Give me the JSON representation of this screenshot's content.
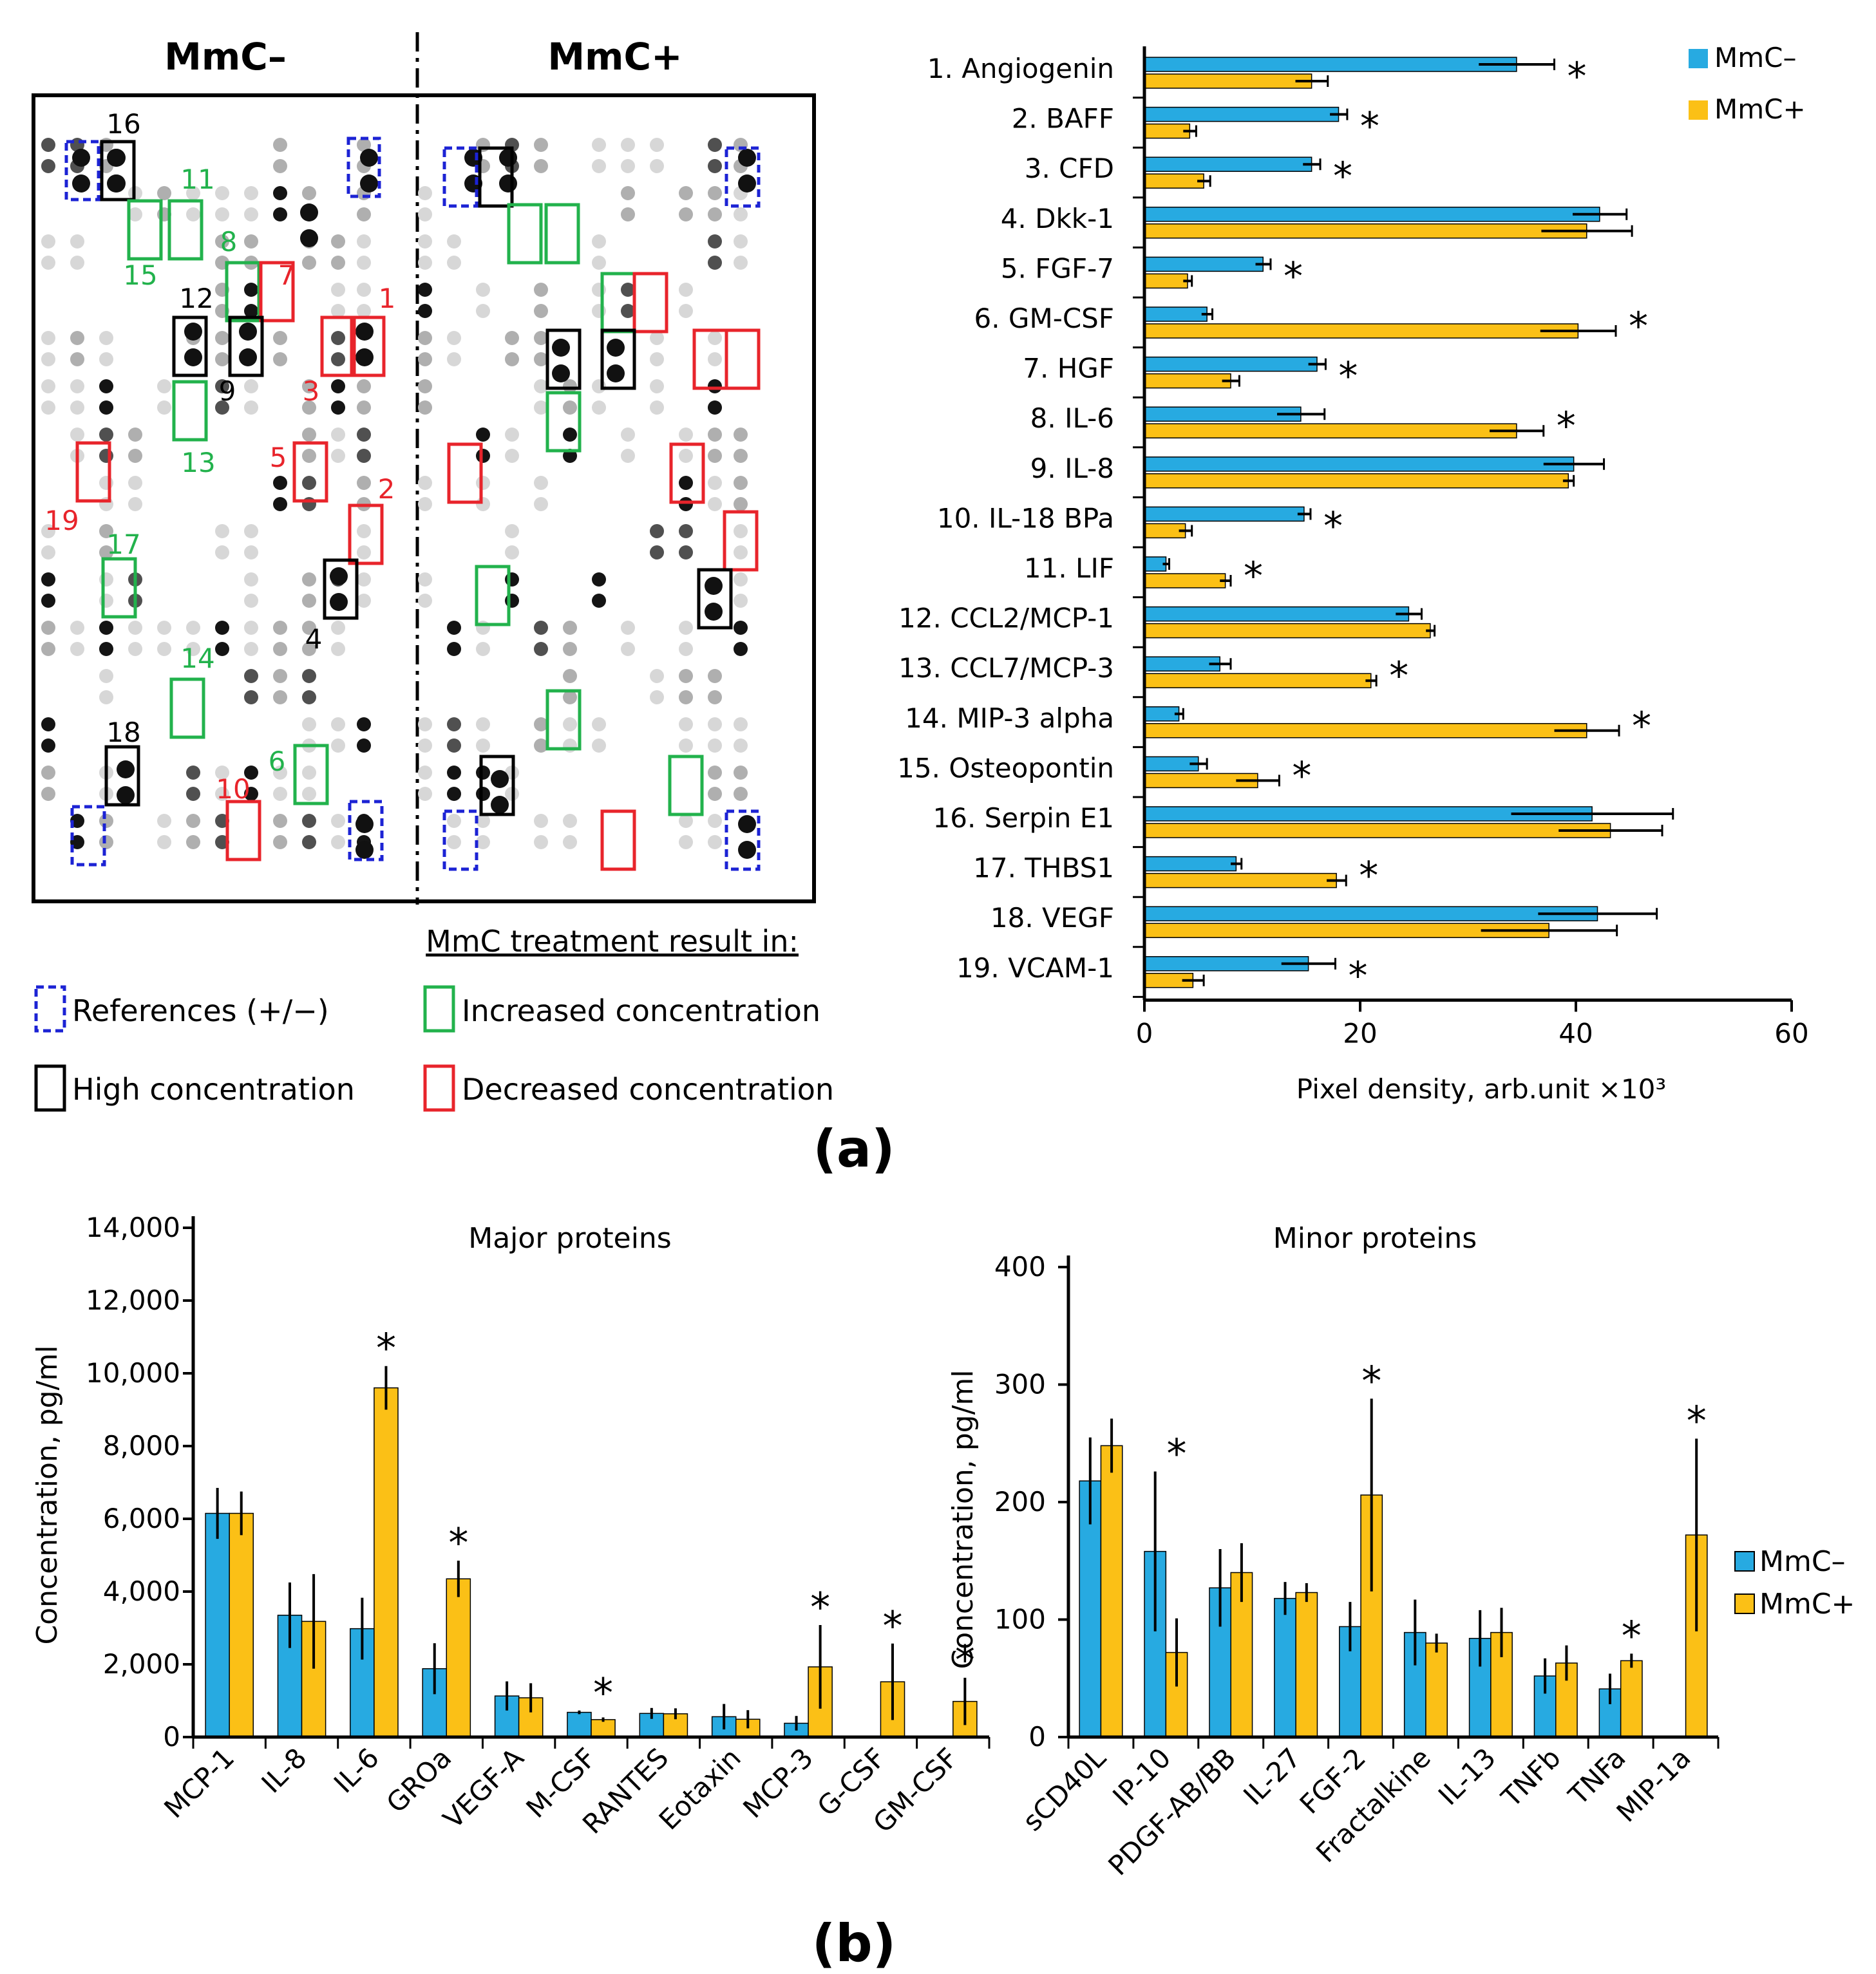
{
  "colors": {
    "mmc_minus": "#27aae1",
    "mmc_plus": "#fbc016",
    "increased": "#22b24c",
    "decreased": "#e8242b",
    "high": "#000000",
    "reference": "#1c23d4"
  },
  "panel_a": {
    "label": "(a)",
    "array": {
      "title_minus": "MmC–",
      "title_plus": "MmC+",
      "callouts": [
        {
          "text": "16",
          "kind": "high"
        },
        {
          "text": "11",
          "kind": "increased"
        },
        {
          "text": "15",
          "kind": "increased"
        },
        {
          "text": "8",
          "kind": "increased"
        },
        {
          "text": "7",
          "kind": "decreased"
        },
        {
          "text": "12",
          "kind": "high"
        },
        {
          "text": "1",
          "kind": "decreased"
        },
        {
          "text": "9",
          "kind": "high"
        },
        {
          "text": "3",
          "kind": "decreased"
        },
        {
          "text": "13",
          "kind": "increased"
        },
        {
          "text": "5",
          "kind": "decreased"
        },
        {
          "text": "2",
          "kind": "decreased"
        },
        {
          "text": "19",
          "kind": "decreased"
        },
        {
          "text": "17",
          "kind": "increased"
        },
        {
          "text": "4",
          "kind": "high"
        },
        {
          "text": "14",
          "kind": "increased"
        },
        {
          "text": "18",
          "kind": "high"
        },
        {
          "text": "6",
          "kind": "increased"
        },
        {
          "text": "10",
          "kind": "decreased"
        }
      ]
    },
    "legend": {
      "heading": "MmC treatment result in:",
      "references": "References (+/−)",
      "high": "High concentration",
      "increased": "Increased concentration",
      "decreased": "Decreased concentration"
    }
  },
  "panel_b": {
    "label": "(b)"
  },
  "chart_data": [
    {
      "type": "bar",
      "orientation": "horizontal",
      "categories": [
        "1. Angiogenin",
        "2. BAFF",
        "3. CFD",
        "4. Dkk-1",
        "5. FGF-7",
        "6. GM-CSF",
        "7. HGF",
        "8. IL-6",
        "9. IL-8",
        "10. IL-18 BPa",
        "11. LIF",
        "12. CCL2/MCP-1",
        "13. CCL7/MCP-3",
        "14. MIP-3 alpha",
        "15. Osteopontin",
        "16. Serpin E1",
        "17. THBS1",
        "18. VEGF",
        "19. VCAM-1"
      ],
      "series": [
        {
          "name": "MmC–",
          "values": [
            34.5,
            18,
            15.5,
            42.2,
            11,
            5.8,
            16,
            14.5,
            39.8,
            14.8,
            2.0,
            24.5,
            7,
            3.2,
            5,
            41.5,
            8.5,
            42,
            15.2
          ],
          "errors": [
            3.5,
            0.8,
            0.8,
            2.5,
            0.7,
            0.5,
            0.8,
            2.2,
            2.8,
            0.6,
            0.3,
            1.2,
            1.0,
            0.4,
            0.8,
            7.5,
            0.5,
            5.5,
            2.5
          ]
        },
        {
          "name": "MmC+",
          "values": [
            15.5,
            4.2,
            5.5,
            41,
            4,
            40.2,
            8,
            34.5,
            39.3,
            3.8,
            7.5,
            26.5,
            21,
            41,
            10.5,
            43.2,
            17.8,
            37.5,
            4.5
          ],
          "errors": [
            1.5,
            0.6,
            0.6,
            4.2,
            0.4,
            3.5,
            0.8,
            2.5,
            0.5,
            0.6,
            0.5,
            0.4,
            0.5,
            3.0,
            2.0,
            4.8,
            0.9,
            6.3,
            1.0
          ]
        }
      ],
      "significant": [
        true,
        true,
        true,
        false,
        true,
        true,
        true,
        true,
        false,
        true,
        true,
        false,
        true,
        true,
        true,
        false,
        true,
        false,
        true
      ],
      "significance_marker": "*",
      "xlabel": "Pixel density, arb.unit ×10³",
      "xlim": [
        0,
        60
      ],
      "xticks": [
        "0",
        "20",
        "40",
        "60"
      ],
      "legend_position": "top-right"
    },
    {
      "type": "bar",
      "title": "Major proteins",
      "categories": [
        "MCP-1",
        "IL-8",
        "IL-6",
        "GROa",
        "VEGF-A",
        "M-CSF",
        "RANTES",
        "Eotaxin",
        "MCP-3",
        "G-CSF",
        "GM-CSF"
      ],
      "series": [
        {
          "name": "MmC–",
          "values": [
            6150,
            3350,
            2980,
            1880,
            1130,
            680,
            650,
            560,
            380,
            0,
            0
          ],
          "errors": [
            700,
            900,
            850,
            700,
            400,
            50,
            150,
            350,
            200,
            0,
            0
          ]
        },
        {
          "name": "MmC+",
          "values": [
            6150,
            3180,
            9600,
            4350,
            1080,
            480,
            640,
            490,
            1930,
            1520,
            980
          ],
          "errors": [
            600,
            1300,
            600,
            500,
            400,
            60,
            150,
            250,
            1150,
            1050,
            650
          ]
        }
      ],
      "significant": [
        false,
        false,
        true,
        true,
        false,
        true,
        false,
        false,
        true,
        true,
        true
      ],
      "significance_marker": "*",
      "ylabel": "Concentration, pg/ml",
      "ylim": [
        0,
        14000
      ],
      "yticks": [
        "0",
        "2,000",
        "4,000",
        "6,000",
        "8,000",
        "10,000",
        "12,000",
        "14,000"
      ]
    },
    {
      "type": "bar",
      "title": "Minor proteins",
      "categories": [
        "sCD40L",
        "IP-10",
        "PDGF-AB/BB",
        "IL-27",
        "FGF-2",
        "Fractalkine",
        "IL-13",
        "TNFb",
        "TNFa",
        "MIP-1a"
      ],
      "series": [
        {
          "name": "MmC–",
          "values": [
            218,
            158,
            127,
            118,
            94,
            89,
            84,
            52,
            41,
            0
          ],
          "errors": [
            37,
            68,
            33,
            14,
            21,
            28,
            24,
            15,
            13,
            0
          ]
        },
        {
          "name": "MmC+",
          "values": [
            248,
            72,
            140,
            123,
            206,
            80,
            89,
            63,
            65,
            172
          ],
          "errors": [
            23,
            29,
            25,
            8,
            82,
            8,
            21,
            15,
            6,
            82
          ]
        }
      ],
      "significant": [
        false,
        true,
        false,
        false,
        true,
        false,
        false,
        false,
        true,
        true
      ],
      "significance_marker": "*",
      "ylabel": "Concentration, pg/ml",
      "ylim": [
        0,
        400
      ],
      "yticks": [
        "0",
        "100",
        "200",
        "300",
        "400"
      ],
      "legend": [
        "MmC–",
        "MmC+"
      ],
      "legend_position": "right"
    }
  ]
}
